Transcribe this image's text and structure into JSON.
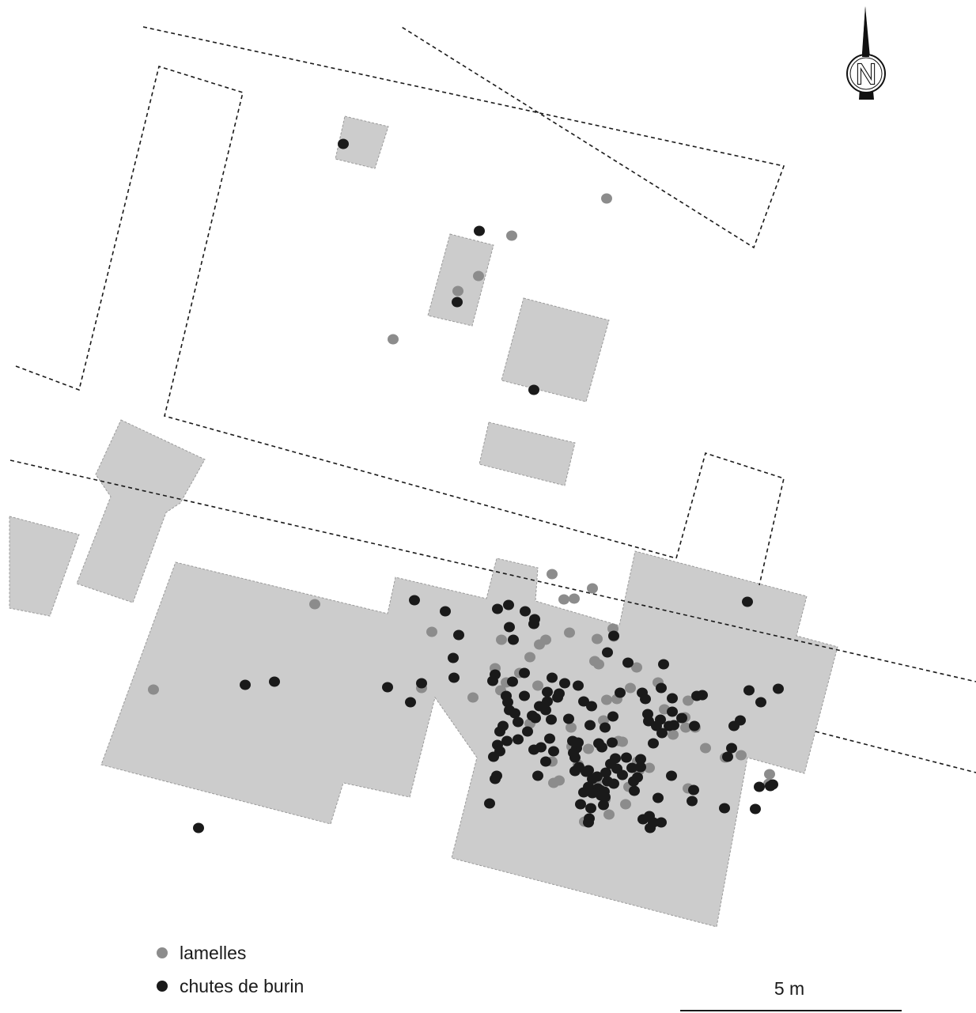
{
  "legend": {
    "lamelles": "lamelles",
    "chutes": "chutes de burin"
  },
  "scale": {
    "label": "5 m"
  },
  "north": {
    "letter": "N",
    "icon": "north-arrow-icon"
  },
  "colors": {
    "lamelles": "#8c8c8c",
    "chutes": "#1a1a1a",
    "excavated": "#cccccc"
  },
  "chart_data": {
    "type": "scatter",
    "series": [
      {
        "name": "lamelles",
        "count": 66
      },
      {
        "name": "chutes de burin",
        "count": 145
      }
    ]
  }
}
